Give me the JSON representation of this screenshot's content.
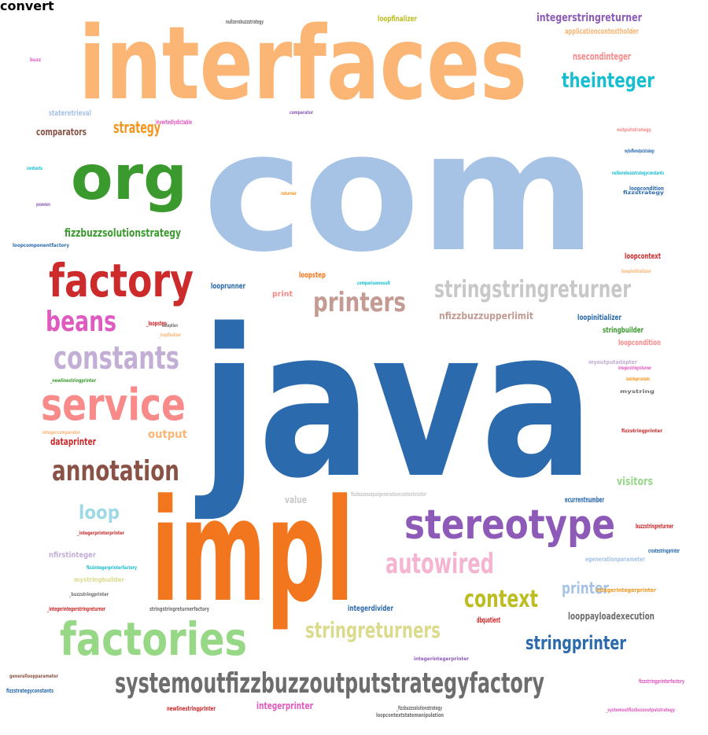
{
  "words": [
    {
      "text": "java",
      "color": "#2b6aad"
    },
    {
      "text": "com",
      "color": "#a6c3e6"
    },
    {
      "text": "interfaces",
      "color": "#fbb574"
    },
    {
      "text": "impl",
      "color": "#f2761e"
    },
    {
      "text": "org",
      "color": "#3a9a2d"
    },
    {
      "text": "factory",
      "color": "#cc2a2b"
    },
    {
      "text": "factories",
      "color": "#96d886"
    },
    {
      "text": "stereotype",
      "color": "#8d5ab7"
    },
    {
      "text": "service",
      "color": "#f88a8a"
    },
    {
      "text": "systemoutfizzbuzzoutputstrategyfactory",
      "color": "#6d6d6d"
    },
    {
      "text": "constants",
      "color": "#c3aed6"
    },
    {
      "text": "annotation",
      "color": "#8a5246"
    },
    {
      "text": "stringstringreturner",
      "color": "#c8c8c8"
    },
    {
      "text": "printers",
      "color": "#c39b93"
    },
    {
      "text": "autowired",
      "color": "#f4b4d2"
    },
    {
      "text": "beans",
      "color": "#e05bbf"
    },
    {
      "text": "stringreturners",
      "color": "#dbdb8d"
    },
    {
      "text": "context",
      "color": "#bcbd22"
    },
    {
      "text": "theinteger",
      "color": "#17becf"
    },
    {
      "text": "stringprinter",
      "color": "#2b6aad"
    },
    {
      "text": "loop",
      "color": "#9edae5"
    },
    {
      "text": "strategy",
      "color": "#f2961e"
    },
    {
      "text": "fizzbuzzsolutionstrategy",
      "color": "#3a9a2d"
    },
    {
      "text": "printer",
      "color": "#a6c3e6"
    },
    {
      "text": "integerstringreturner",
      "color": "#8d5ab7"
    },
    {
      "text": "nsecondinteger",
      "color": "#f88a8a"
    },
    {
      "text": "comparators",
      "color": "#8a5246"
    },
    {
      "text": "output",
      "color": "#fbb574"
    },
    {
      "text": "dataprinter",
      "color": "#cc2a2b"
    },
    {
      "text": "looppayloadexecution",
      "color": "#6d6d6d"
    },
    {
      "text": "visitors",
      "color": "#96d886"
    },
    {
      "text": "nfizzbuzzupperlimit",
      "color": "#c39b93"
    },
    {
      "text": "integerprinter",
      "color": "#e05bbf"
    },
    {
      "text": "stateretrieval",
      "color": "#a6c3e6"
    },
    {
      "text": "loopfinalizer",
      "color": "#bcbd22"
    },
    {
      "text": "applicationcontextholder",
      "color": "#fbb574"
    },
    {
      "text": "value",
      "color": "#c8c8c8"
    },
    {
      "text": "looprunner",
      "color": "#2b6aad"
    },
    {
      "text": "loopstep",
      "color": "#f2761e"
    },
    {
      "text": "print",
      "color": "#f88a8a"
    },
    {
      "text": "loopcontext",
      "color": "#cc2a2b"
    },
    {
      "text": "stringbuilder",
      "color": "#3a9a2d"
    },
    {
      "text": "loopcondition",
      "color": "#f88a8a"
    },
    {
      "text": "loopinitializer",
      "color": "#2b6aad"
    },
    {
      "text": "integerdivider",
      "color": "#2b6aad"
    },
    {
      "text": "dbquotient",
      "color": "#cc2a2b"
    },
    {
      "text": "ecurrentnumber",
      "color": "#2b6aad"
    },
    {
      "text": "buzzstringreturner",
      "color": "#cc2a2b"
    },
    {
      "text": "nfirstinteger",
      "color": "#c3aed6"
    },
    {
      "text": "egenerationparameter",
      "color": "#a6c3e6"
    },
    {
      "text": "mystringbuilder",
      "color": "#dbdb8d"
    },
    {
      "text": "newlinestringprinter",
      "color": "#cc2a2b"
    },
    {
      "text": "integerintegerprinter",
      "color": "#8d5ab7"
    },
    {
      "text": "invertedlydictable",
      "color": "#e05bbf"
    },
    {
      "text": "fizzstrategyconstants",
      "color": "#2b6aad"
    },
    {
      "text": "_loopstep",
      "color": "#cc2a2b"
    },
    {
      "text": "_fizzbuzzsolutionstrategy",
      "color": "#6d6d6d"
    },
    {
      "text": "loopcontextstatemanipulation",
      "color": "#6d6d6d"
    },
    {
      "text": "stringstringreturnerfactory",
      "color": "#6d6d6d"
    },
    {
      "text": "integercomparator",
      "color": "#fbb574"
    },
    {
      "text": "_newlinestringprinter",
      "color": "#3a9a2d"
    },
    {
      "text": "fizzbuzzoutputgenerationcontextvisitor",
      "color": "#c8c8c8"
    },
    {
      "text": "integerintegerprinter",
      "color": "#f2961e"
    },
    {
      "text": "_integerintegerstringreturner",
      "color": "#cc2a2b"
    },
    {
      "text": "fizzstringprinter",
      "color": "#cc2a2b"
    },
    {
      "text": "_buzzstringprinter",
      "color": "#6d6d6d"
    },
    {
      "text": "loopcomponentfactory",
      "color": "#2b6aad"
    },
    {
      "text": "parameters",
      "color": "#8d5ab7"
    },
    {
      "text": "contexts",
      "color": "#17becf"
    },
    {
      "text": "buzz",
      "color": "#e05bbf"
    },
    {
      "text": "generalloopparameter",
      "color": "#8a5246"
    },
    {
      "text": "createstringprinter",
      "color": "#2b6aad"
    },
    {
      "text": "myoutputadapter",
      "color": "#c3aed6"
    },
    {
      "text": "integerstringreturner",
      "color": "#e05bbf"
    },
    {
      "text": "loopcondition",
      "color": "#2b6aad"
    },
    {
      "text": "comparisonresult",
      "color": "#17becf"
    },
    {
      "text": "loopinitializer",
      "color": "#fbb574"
    },
    {
      "text": "_integerprinterprinter",
      "color": "#cc2a2b"
    },
    {
      "text": "nullzerobuzzstrategy",
      "color": "#6d6d6d"
    },
    {
      "text": "fizzstrategy",
      "color": "#2b6aad"
    },
    {
      "text": "outputstrategy",
      "color": "#f88a8a"
    },
    {
      "text": "fizzstringprinterfactory",
      "color": "#e05bbf"
    },
    {
      "text": "_systemoutfizzbuzzoutputstrategy",
      "color": "#e05bbf"
    },
    {
      "text": "nullzerobuzzstrategyconstants",
      "color": "#17becf"
    },
    {
      "text": "fizzintegerprinterfactory",
      "color": "#17becf"
    },
    {
      "text": "buzzintegerconstants",
      "color": "#f2961e"
    },
    {
      "text": "mystring",
      "color": "#6d6d6d"
    },
    {
      "text": "mybufferoutputstrategy",
      "color": "#2b6aad"
    },
    {
      "text": "comparator",
      "color": "#8d5ab7"
    },
    {
      "text": "exception",
      "color": "#6d6d6d"
    },
    {
      "text": "_loopfinalizer",
      "color": "#fbb574"
    },
    {
      "text": "returner",
      "color": "#f2961e"
    },
    {
      "text": "convert",
      "color": "#fbb574"
    }
  ]
}
